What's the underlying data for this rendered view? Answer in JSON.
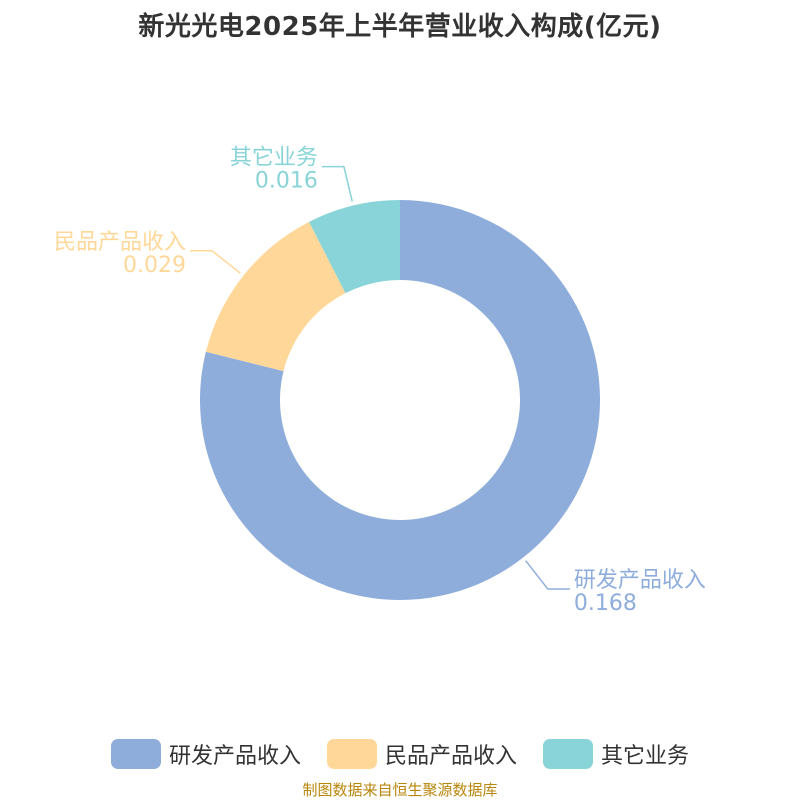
{
  "chart_data": {
    "type": "pie",
    "title": "新光光电2025年上半年营业收入构成(亿元)",
    "categories": [
      "研发产品收入",
      "民品产品收入",
      "其它业务"
    ],
    "values": [
      0.168,
      0.029,
      0.016
    ],
    "value_labels": [
      "0.168",
      "0.029",
      "0.016"
    ],
    "colors": [
      "#8eaddb",
      "#ffd899",
      "#88d4d8"
    ],
    "legend_position": "bottom",
    "inner_radius_ratio": 0.6
  },
  "legend": {
    "items": [
      {
        "label": "研发产品收入",
        "color": "#8eaddb"
      },
      {
        "label": "民品产品收入",
        "color": "#ffd899"
      },
      {
        "label": "其它业务",
        "color": "#88d4d8"
      }
    ]
  },
  "source_note": "制图数据来自恒生聚源数据库"
}
